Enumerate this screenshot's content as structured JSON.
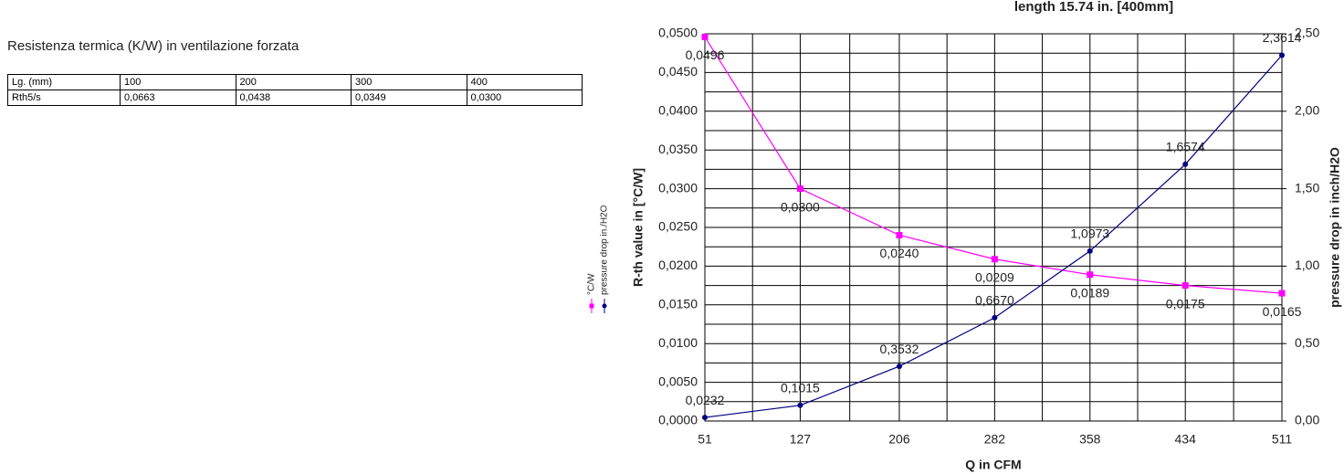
{
  "heading": "Resistenza termica (K/W) in ventilazione forzata",
  "table": {
    "rows": [
      [
        "Lg. (mm)",
        "100",
        "200",
        "300",
        "400"
      ],
      [
        "Rth5/s",
        "0,0663",
        "0,0438",
        "0,0349",
        "0,0300"
      ]
    ]
  },
  "chart_data": {
    "type": "line",
    "title": "length 15.74 in. [400mm]",
    "x_label": "Q in CFM",
    "y_label": "R-th value in [°C/W]",
    "y2_label": "pressure drop in inch/H2O",
    "x": [
      51,
      127,
      206,
      282,
      358,
      434,
      511
    ],
    "xlim": [
      51,
      511
    ],
    "xticks": [
      51,
      127,
      206,
      282,
      358,
      434,
      511
    ],
    "ylim": [
      0,
      0.05
    ],
    "yticks": [
      {
        "value": 0,
        "label": "0,0000"
      },
      {
        "value": 0.005,
        "label": "0,0050"
      },
      {
        "value": 0.01,
        "label": "0,0100"
      },
      {
        "value": 0.015,
        "label": "0,0150"
      },
      {
        "value": 0.02,
        "label": "0,0200"
      },
      {
        "value": 0.025,
        "label": "0,0250"
      },
      {
        "value": 0.03,
        "label": "0,0300"
      },
      {
        "value": 0.035,
        "label": "0,0350"
      },
      {
        "value": 0.04,
        "label": "0,0400"
      },
      {
        "value": 0.045,
        "label": "0,0450"
      },
      {
        "value": 0.05,
        "label": "0,0500"
      }
    ],
    "y2lim": [
      0,
      2.5
    ],
    "y2ticks": [
      {
        "value": 0,
        "label": "0,00"
      },
      {
        "value": 0.5,
        "label": "0,50"
      },
      {
        "value": 1,
        "label": "1,00"
      },
      {
        "value": 1.5,
        "label": "1,50"
      },
      {
        "value": 2,
        "label": "2,00"
      },
      {
        "value": 2.5,
        "label": "2,50"
      }
    ],
    "grid": true,
    "series": [
      {
        "name": "°C/W",
        "color": "#ff00ff",
        "marker": "square",
        "values": [
          0.0496,
          0.03,
          0.024,
          0.0209,
          0.0189,
          0.0175,
          0.0165
        ],
        "value_labels": [
          "0,0496",
          "0,0300",
          "0,0240",
          "0,0209",
          "0,0189",
          "0,0175",
          "0,0165"
        ]
      },
      {
        "name": "pressure drop in./H2O",
        "color": "#000080",
        "marker": "circle",
        "axis": "y2",
        "values": [
          0.0232,
          0.1015,
          0.3532,
          0.667,
          1.0973,
          1.6574,
          2.3614
        ],
        "value_labels": [
          "0,0232",
          "0,1015",
          "0,3532",
          "0,6670",
          "1,0973",
          "1,6574",
          "2,3614"
        ]
      }
    ]
  }
}
